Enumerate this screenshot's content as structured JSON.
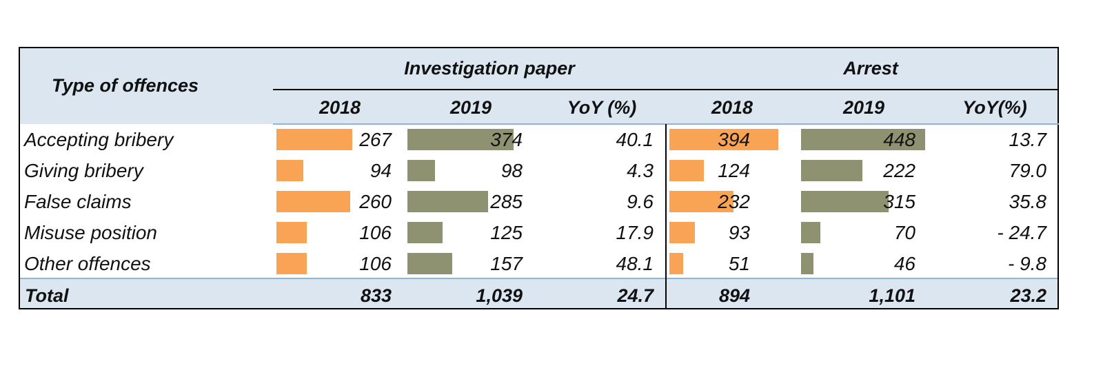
{
  "chart_data": {
    "type": "table",
    "header": {
      "type_col": "Type of offences",
      "groups": [
        {
          "title": "Investigation paper",
          "columns": [
            "2018",
            "2019",
            "YoY (%)"
          ]
        },
        {
          "title": "Arrest",
          "columns": [
            "2018",
            "2019",
            "YoY(%)"
          ]
        }
      ]
    },
    "rows": [
      {
        "label": "Accepting bribery",
        "inv2018": 267,
        "inv2019": 374,
        "invYoY": "40.1",
        "arr2018": 394,
        "arr2019": 448,
        "arrYoY": "13.7"
      },
      {
        "label": "Giving bribery",
        "inv2018": 94,
        "inv2019": 98,
        "invYoY": "4.3",
        "arr2018": 124,
        "arr2019": 222,
        "arrYoY": "79.0"
      },
      {
        "label": "False claims",
        "inv2018": 260,
        "inv2019": 285,
        "invYoY": "9.6",
        "arr2018": 232,
        "arr2019": 315,
        "arrYoY": "35.8"
      },
      {
        "label": "Misuse position",
        "inv2018": 106,
        "inv2019": 125,
        "invYoY": "17.9",
        "arr2018": 93,
        "arr2019": 70,
        "arrYoY": "- 24.7"
      },
      {
        "label": "Other offences",
        "inv2018": 106,
        "inv2019": 157,
        "invYoY": "48.1",
        "arr2018": 51,
        "arr2019": 46,
        "arrYoY": "- 9.8"
      }
    ],
    "total": {
      "label": "Total",
      "inv2018": "833",
      "inv2019": "1,039",
      "invYoY": "24.7",
      "arr2018": "894",
      "arr2019": "1,101",
      "arrYoY": "23.2"
    },
    "bar_colors": {
      "2018": "#f8a454",
      "2019": "#8f9271"
    }
  }
}
